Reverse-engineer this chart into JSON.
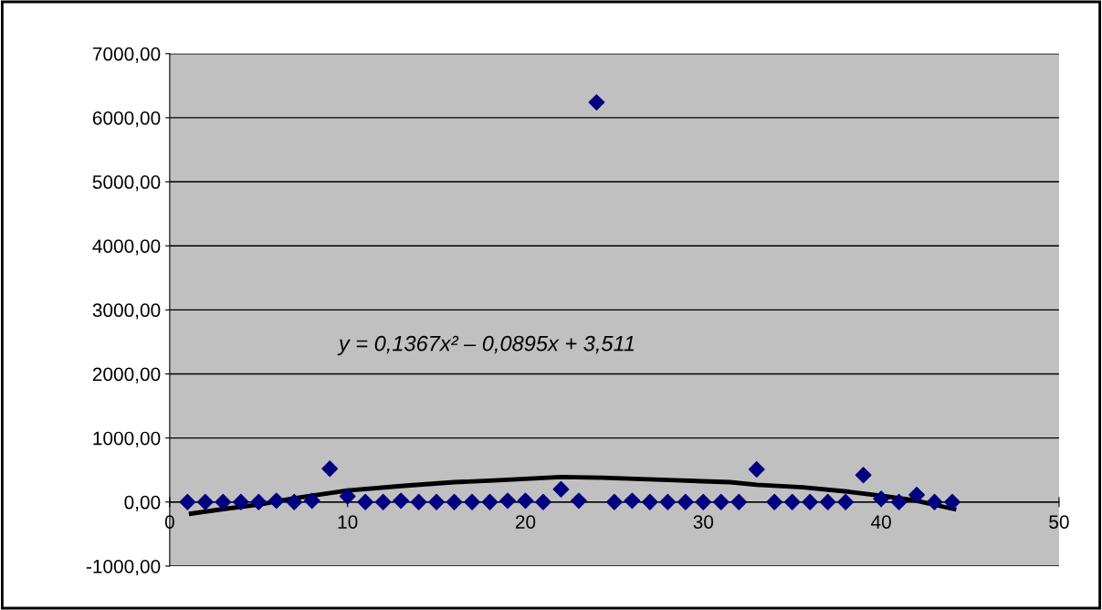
{
  "chart_data": {
    "type": "scatter",
    "marker": "diamond",
    "grid": "y",
    "legend": false,
    "xlim": [
      0,
      50
    ],
    "xticks": [
      0,
      10,
      20,
      30,
      40,
      50
    ],
    "ylim": [
      -1000,
      7000
    ],
    "yticks": [
      {
        "value": -1000,
        "label": "-1000,00"
      },
      {
        "value": 0,
        "label": "0,00"
      },
      {
        "value": 1000,
        "label": "1000,00"
      },
      {
        "value": 2000,
        "label": "2000,00"
      },
      {
        "value": 3000,
        "label": "3000,00"
      },
      {
        "value": 4000,
        "label": "4000,00"
      },
      {
        "value": 5000,
        "label": "5000,00"
      },
      {
        "value": 6000,
        "label": "6000,00"
      },
      {
        "value": 7000,
        "label": "7000,00"
      }
    ],
    "annotations": [
      "y = 0,1367x² – 0,0895x + 3,511"
    ],
    "series": [
      {
        "color": "#000080",
        "x": [
          1,
          2,
          3,
          4,
          5,
          6,
          7,
          8,
          9,
          10,
          11,
          12,
          13,
          14,
          15,
          16,
          17,
          18,
          19,
          20,
          21,
          22,
          23,
          24,
          25,
          26,
          27,
          28,
          29,
          30,
          31,
          32,
          33,
          34,
          35,
          36,
          37,
          38,
          39,
          40,
          41,
          42,
          43,
          44
        ],
        "values": [
          0,
          0,
          0,
          0,
          0,
          20,
          0,
          20,
          520,
          90,
          0,
          0,
          20,
          0,
          0,
          0,
          0,
          0,
          20,
          20,
          0,
          200,
          20,
          6240,
          0,
          20,
          0,
          0,
          0,
          0,
          0,
          0,
          510,
          0,
          0,
          0,
          0,
          0,
          420,
          50,
          0,
          110,
          0,
          0
        ]
      },
      {
        "type": "line",
        "color": "#000000",
        "marker": "none",
        "x": [
          1.2,
          3,
          5,
          7,
          10,
          13,
          16,
          18.5,
          22,
          24.3,
          28.4,
          31.5,
          33,
          35.6,
          38.2,
          40.2,
          41.8,
          44.1
        ],
        "values": [
          -180,
          -110,
          -40,
          60,
          180,
          250,
          310,
          340,
          390,
          380,
          340,
          310,
          270,
          230,
          160,
          90,
          30,
          -110
        ]
      }
    ]
  }
}
